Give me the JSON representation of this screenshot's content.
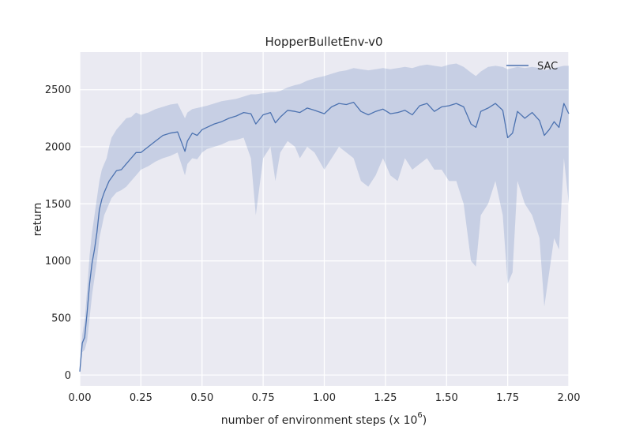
{
  "chart_data": {
    "type": "line",
    "title": "HopperBulletEnv-v0",
    "xlabel": "number of environment steps (x 10",
    "xlabel_exponent": "6",
    "xlabel_suffix": ")",
    "ylabel": "return",
    "xlim": [
      0,
      2.0
    ],
    "ylim": [
      -95,
      2830
    ],
    "xticks": [
      0.0,
      0.25,
      0.5,
      0.75,
      1.0,
      1.25,
      1.5,
      1.75,
      2.0
    ],
    "xtick_labels": [
      "0.00",
      "0.25",
      "0.50",
      "0.75",
      "1.00",
      "1.25",
      "1.50",
      "1.75",
      "2.00"
    ],
    "yticks": [
      0,
      500,
      1000,
      1500,
      2000,
      2500
    ],
    "ytick_labels": [
      "0",
      "500",
      "1000",
      "1500",
      "2000",
      "2500"
    ],
    "grid": true,
    "legend_position": "top-right",
    "colors": {
      "background": "#eaeaf2",
      "grid": "#ffffff",
      "line": "#4c72b0",
      "band": "#4c72b0"
    },
    "series": [
      {
        "name": "SAC",
        "x": [
          0.0,
          0.01,
          0.02,
          0.03,
          0.04,
          0.05,
          0.06,
          0.07,
          0.08,
          0.09,
          0.1,
          0.11,
          0.12,
          0.13,
          0.15,
          0.17,
          0.19,
          0.21,
          0.23,
          0.25,
          0.28,
          0.31,
          0.34,
          0.37,
          0.4,
          0.43,
          0.44,
          0.46,
          0.48,
          0.5,
          0.52,
          0.55,
          0.58,
          0.61,
          0.64,
          0.67,
          0.7,
          0.72,
          0.75,
          0.78,
          0.8,
          0.82,
          0.85,
          0.88,
          0.9,
          0.93,
          0.96,
          1.0,
          1.03,
          1.06,
          1.09,
          1.12,
          1.15,
          1.18,
          1.21,
          1.24,
          1.27,
          1.3,
          1.33,
          1.36,
          1.39,
          1.42,
          1.45,
          1.48,
          1.51,
          1.54,
          1.57,
          1.6,
          1.62,
          1.64,
          1.67,
          1.7,
          1.73,
          1.75,
          1.77,
          1.79,
          1.82,
          1.85,
          1.88,
          1.9,
          1.92,
          1.94,
          1.96,
          1.98,
          2.0
        ],
        "y": [
          30,
          280,
          330,
          550,
          800,
          980,
          1100,
          1250,
          1450,
          1540,
          1600,
          1650,
          1700,
          1730,
          1790,
          1800,
          1850,
          1900,
          1950,
          1950,
          2000,
          2050,
          2100,
          2120,
          2130,
          1960,
          2050,
          2120,
          2100,
          2150,
          2170,
          2200,
          2220,
          2250,
          2270,
          2300,
          2290,
          2200,
          2280,
          2300,
          2210,
          2260,
          2320,
          2310,
          2300,
          2340,
          2320,
          2290,
          2350,
          2380,
          2370,
          2390,
          2310,
          2280,
          2310,
          2330,
          2290,
          2300,
          2320,
          2280,
          2360,
          2380,
          2310,
          2350,
          2360,
          2380,
          2350,
          2200,
          2170,
          2310,
          2340,
          2380,
          2320,
          2080,
          2120,
          2310,
          2250,
          2300,
          2230,
          2100,
          2150,
          2220,
          2170,
          2380,
          2290
        ],
        "y_upper": [
          50,
          350,
          480,
          750,
          1050,
          1250,
          1400,
          1550,
          1700,
          1800,
          1850,
          1900,
          2000,
          2080,
          2150,
          2200,
          2250,
          2260,
          2300,
          2280,
          2300,
          2330,
          2350,
          2370,
          2380,
          2250,
          2300,
          2330,
          2340,
          2350,
          2360,
          2380,
          2400,
          2410,
          2420,
          2440,
          2460,
          2460,
          2470,
          2480,
          2480,
          2490,
          2520,
          2540,
          2550,
          2580,
          2600,
          2620,
          2640,
          2660,
          2670,
          2690,
          2680,
          2670,
          2680,
          2690,
          2680,
          2690,
          2700,
          2690,
          2710,
          2720,
          2710,
          2700,
          2720,
          2730,
          2700,
          2650,
          2620,
          2660,
          2700,
          2710,
          2700,
          2680,
          2690,
          2700,
          2690,
          2700,
          2690,
          2670,
          2680,
          2690,
          2700,
          2710,
          2710
        ],
        "y_lower": [
          10,
          200,
          220,
          300,
          500,
          700,
          850,
          1000,
          1200,
          1300,
          1400,
          1450,
          1500,
          1550,
          1600,
          1620,
          1650,
          1700,
          1750,
          1800,
          1830,
          1870,
          1900,
          1920,
          1950,
          1750,
          1850,
          1900,
          1890,
          1950,
          1980,
          2000,
          2020,
          2050,
          2060,
          2080,
          1900,
          1400,
          1900,
          2000,
          1700,
          1950,
          2050,
          2000,
          1900,
          2000,
          1950,
          1800,
          1900,
          2000,
          1950,
          1900,
          1700,
          1650,
          1750,
          1900,
          1750,
          1700,
          1900,
          1800,
          1850,
          1900,
          1800,
          1800,
          1700,
          1700,
          1500,
          1000,
          950,
          1400,
          1500,
          1700,
          1400,
          800,
          900,
          1700,
          1500,
          1400,
          1200,
          600,
          900,
          1200,
          1100,
          1900,
          1500
        ]
      }
    ]
  }
}
